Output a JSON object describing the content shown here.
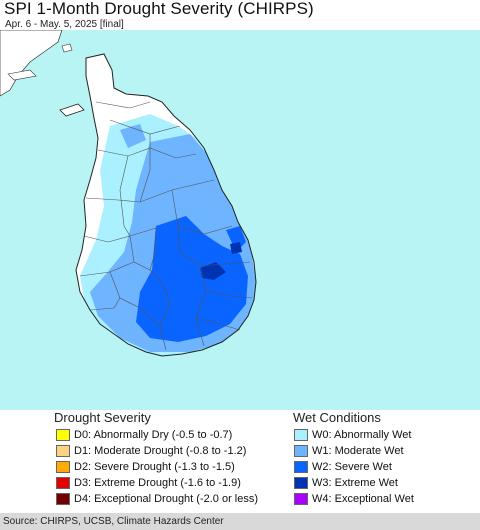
{
  "header": {
    "title": "SPI 1-Month Drought Severity (CHIRPS)",
    "subtitle": "Apr. 6 - May. 5, 2025 [final]"
  },
  "map": {
    "ocean_color": "#b8f4f4",
    "land_color": "#ffffff",
    "region": "Sri Lanka"
  },
  "legend": {
    "drought": {
      "title": "Drought Severity",
      "items": [
        {
          "code": "D0",
          "label": "D0: Abnormally Dry (-0.5 to -0.7)",
          "color": "#ffff00"
        },
        {
          "code": "D1",
          "label": "D1: Moderate Drought (-0.8 to -1.2)",
          "color": "#fcd37f"
        },
        {
          "code": "D2",
          "label": "D2: Severe Drought (-1.3 to -1.5)",
          "color": "#ffaa00"
        },
        {
          "code": "D3",
          "label": "D3: Extreme Drought (-1.6 to -1.9)",
          "color": "#e60000"
        },
        {
          "code": "D4",
          "label": "D4: Exceptional Drought (-2.0 or less)",
          "color": "#730000"
        }
      ]
    },
    "wet": {
      "title": "Wet Conditions",
      "items": [
        {
          "code": "W0",
          "label": "W0: Abnormally Wet",
          "color": "#aaf0ff"
        },
        {
          "code": "W1",
          "label": "W1: Moderate Wet",
          "color": "#6eb4ff"
        },
        {
          "code": "W2",
          "label": "W2: Severe Wet",
          "color": "#0a64ff"
        },
        {
          "code": "W3",
          "label": "W3: Extreme Wet",
          "color": "#0032b4"
        },
        {
          "code": "W4",
          "label": "W4: Exceptional Wet",
          "color": "#aa00ff"
        }
      ]
    }
  },
  "footer": {
    "source": "Source: CHIRPS, UCSB, Climate Hazards Center"
  }
}
